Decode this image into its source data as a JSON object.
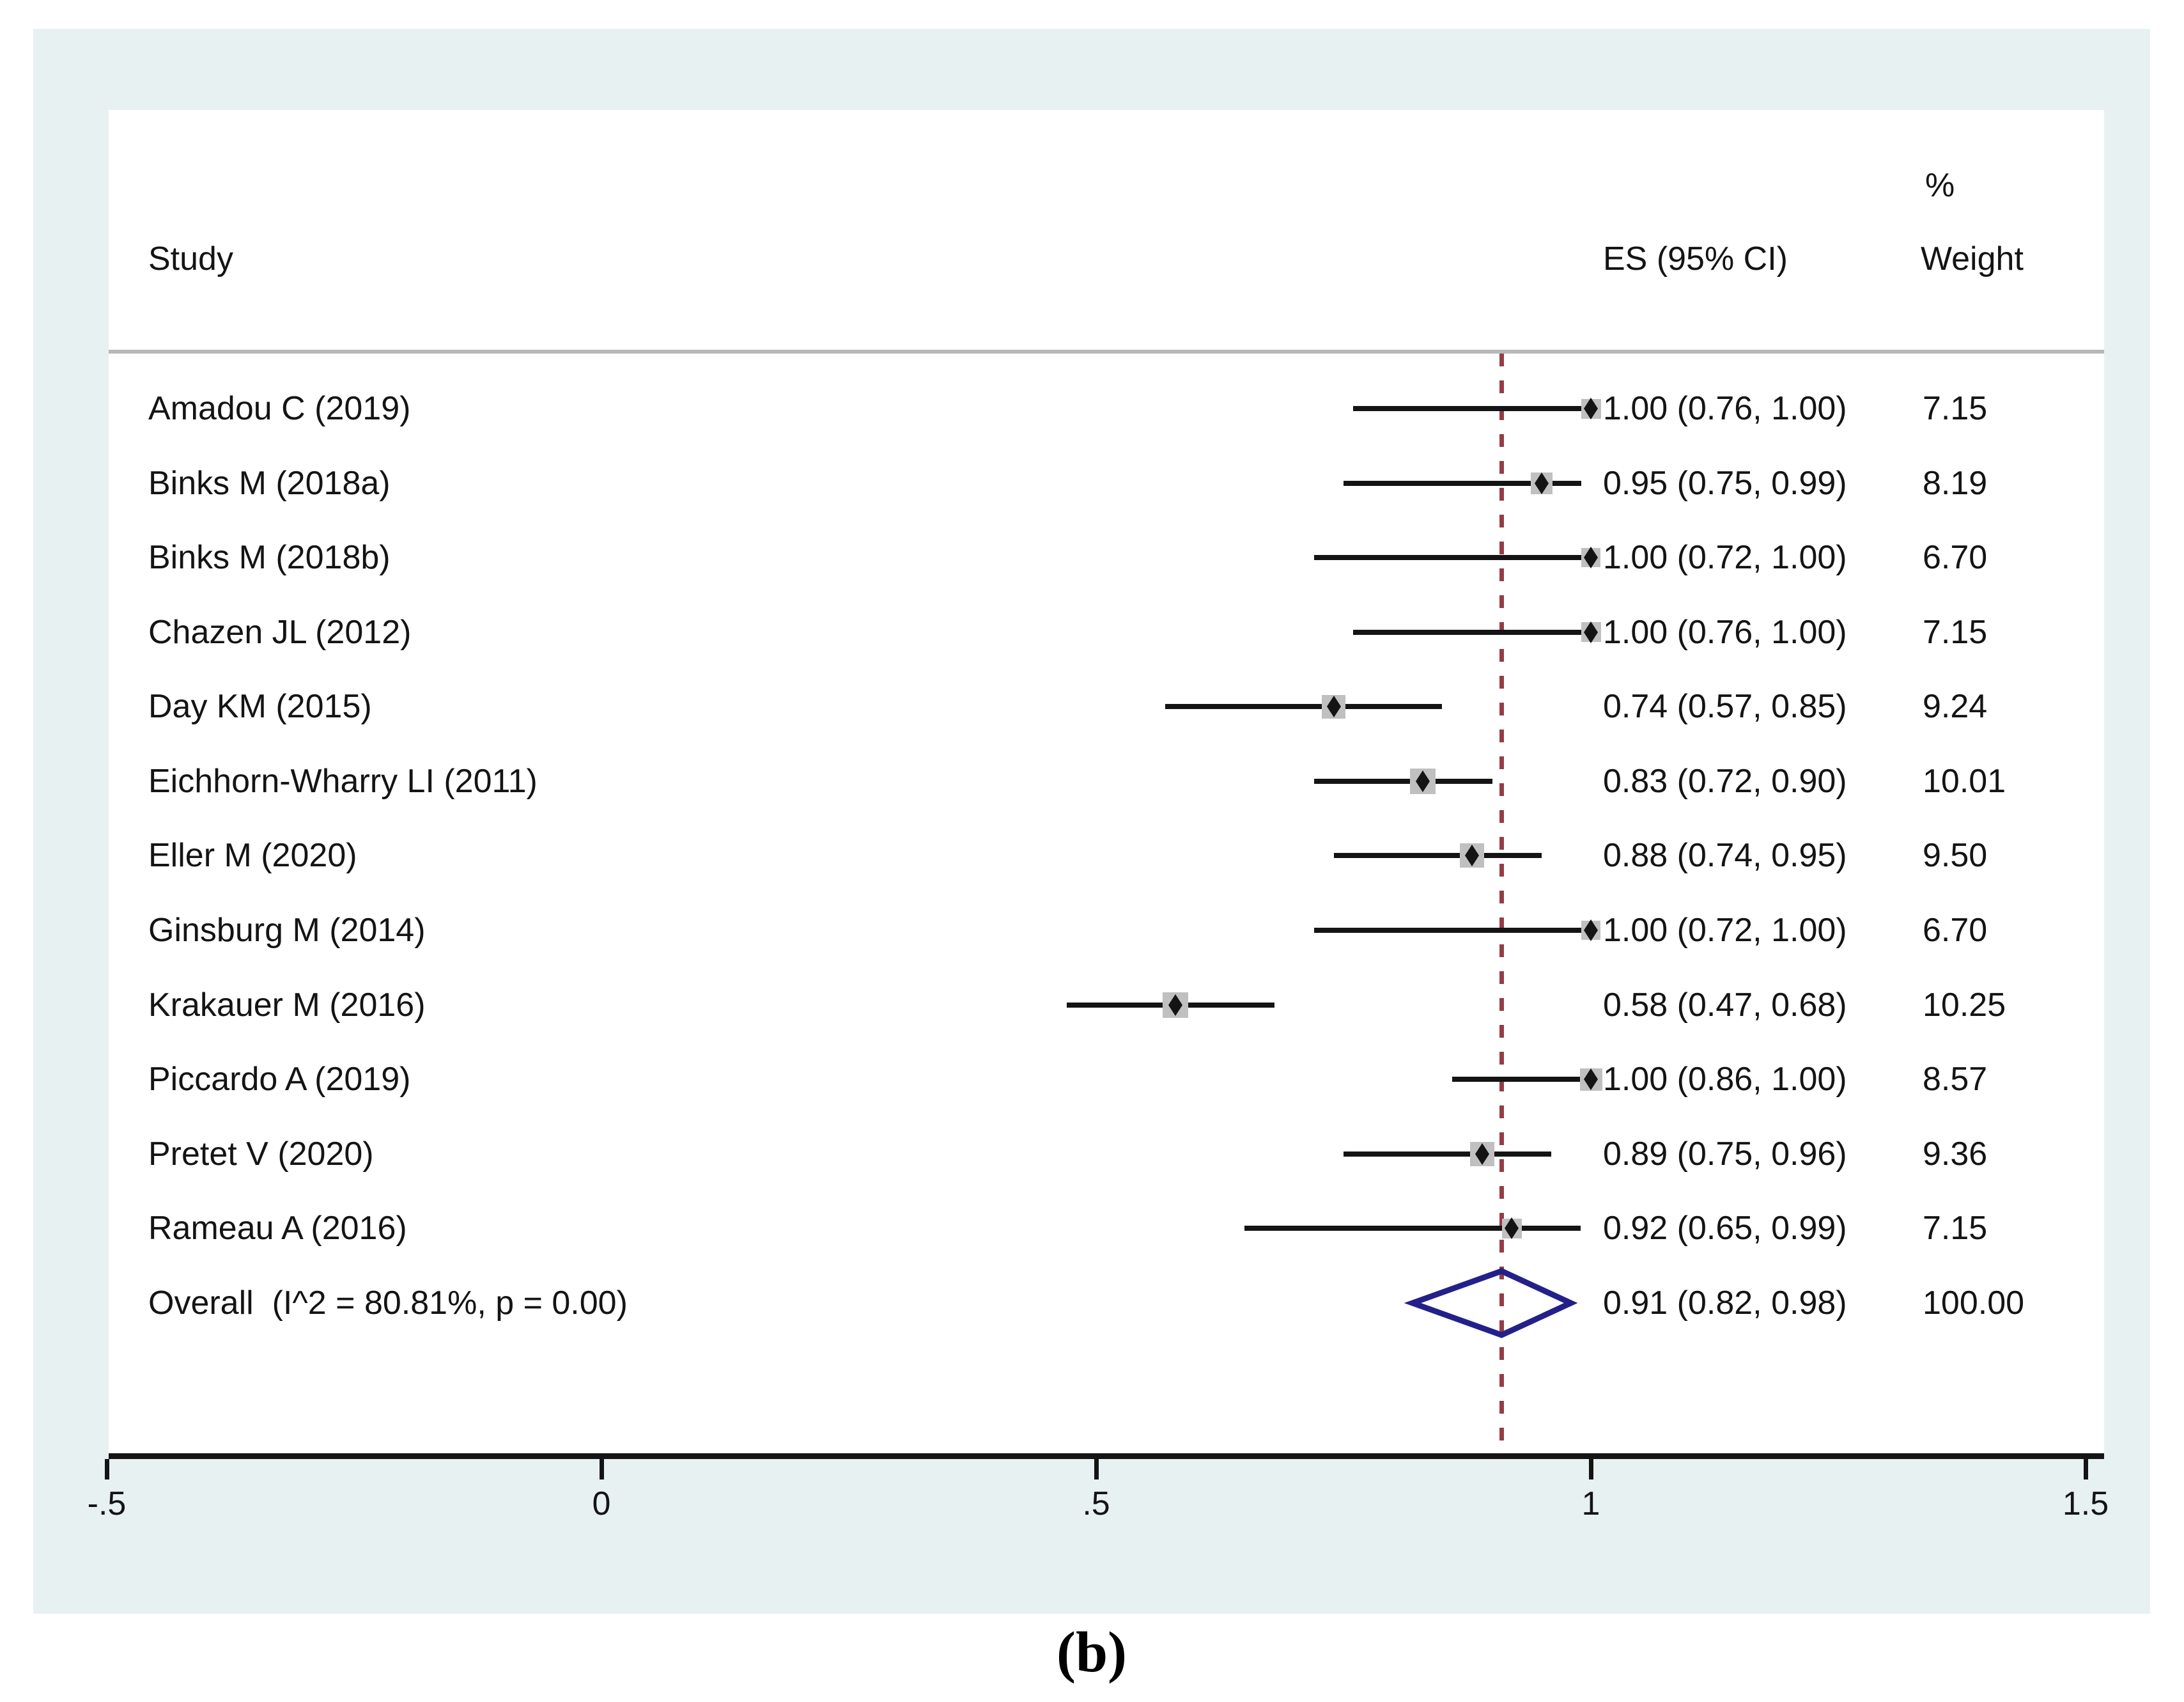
{
  "figure": {
    "caption": "(b)"
  },
  "header": {
    "study": "Study",
    "percent": "%",
    "weight": "Weight",
    "es": "ES (95% CI)"
  },
  "colors": {
    "panel_bg": "#e8f1f2",
    "plot_bg": "#ffffff",
    "text": "#141414",
    "ci_line": "#141414",
    "weight_square": "#c0c0c0",
    "point_marker": "#141414",
    "overall_diamond": "#232189",
    "ref_line": "#963c46",
    "separator": "#b8b8b8",
    "axis": "#141414"
  },
  "chart_data": {
    "type": "scatter",
    "subtype": "forest-plot",
    "title": "",
    "xlabel": "",
    "xlim": [
      -0.5,
      1.5
    ],
    "grid": false,
    "ref_line_value": 0.91,
    "ticks": [
      {
        "label": "-.5",
        "value": -0.5
      },
      {
        "label": "0",
        "value": 0
      },
      {
        "label": ".5",
        "value": 0.5
      },
      {
        "label": "1",
        "value": 1
      },
      {
        "label": "1.5",
        "value": 1.5
      }
    ],
    "studies": [
      {
        "label": "Amadou C (2019)",
        "es": 1.0,
        "lo": 0.76,
        "hi": 1.0,
        "weight": 7.15,
        "es_text": "1.00 (0.76, 1.00)",
        "weight_text": "7.15"
      },
      {
        "label": "Binks M (2018a)",
        "es": 0.95,
        "lo": 0.75,
        "hi": 0.99,
        "weight": 8.19,
        "es_text": "0.95 (0.75, 0.99)",
        "weight_text": "8.19"
      },
      {
        "label": "Binks M (2018b)",
        "es": 1.0,
        "lo": 0.72,
        "hi": 1.0,
        "weight": 6.7,
        "es_text": "1.00 (0.72, 1.00)",
        "weight_text": "6.70"
      },
      {
        "label": "Chazen JL (2012)",
        "es": 1.0,
        "lo": 0.76,
        "hi": 1.0,
        "weight": 7.15,
        "es_text": "1.00 (0.76, 1.00)",
        "weight_text": "7.15"
      },
      {
        "label": "Day KM (2015)",
        "es": 0.74,
        "lo": 0.57,
        "hi": 0.85,
        "weight": 9.24,
        "es_text": "0.74 (0.57, 0.85)",
        "weight_text": "9.24"
      },
      {
        "label": "Eichhorn-Wharry LI (2011)",
        "es": 0.83,
        "lo": 0.72,
        "hi": 0.9,
        "weight": 10.01,
        "es_text": "0.83 (0.72, 0.90)",
        "weight_text": "10.01"
      },
      {
        "label": "Eller M (2020)",
        "es": 0.88,
        "lo": 0.74,
        "hi": 0.95,
        "weight": 9.5,
        "es_text": "0.88 (0.74, 0.95)",
        "weight_text": "9.50"
      },
      {
        "label": "Ginsburg M (2014)",
        "es": 1.0,
        "lo": 0.72,
        "hi": 1.0,
        "weight": 6.7,
        "es_text": "1.00 (0.72, 1.00)",
        "weight_text": "6.70"
      },
      {
        "label": "Krakauer M (2016)",
        "es": 0.58,
        "lo": 0.47,
        "hi": 0.68,
        "weight": 10.25,
        "es_text": "0.58 (0.47, 0.68)",
        "weight_text": "10.25"
      },
      {
        "label": "Piccardo A (2019)",
        "es": 1.0,
        "lo": 0.86,
        "hi": 1.0,
        "weight": 8.57,
        "es_text": "1.00 (0.86, 1.00)",
        "weight_text": "8.57"
      },
      {
        "label": "Pretet V (2020)",
        "es": 0.89,
        "lo": 0.75,
        "hi": 0.96,
        "weight": 9.36,
        "es_text": "0.89 (0.75, 0.96)",
        "weight_text": "9.36"
      },
      {
        "label": "Rameau A (2016)",
        "es": 0.92,
        "lo": 0.65,
        "hi": 0.99,
        "weight": 7.15,
        "es_text": "0.92 (0.65, 0.99)",
        "weight_text": "7.15"
      }
    ],
    "overall": {
      "label": "Overall  (I^2 = 80.81%, p = 0.00)",
      "es": 0.91,
      "lo": 0.82,
      "hi": 0.98,
      "es_text": "0.91 (0.82, 0.98)",
      "weight_text": "100.00"
    }
  }
}
